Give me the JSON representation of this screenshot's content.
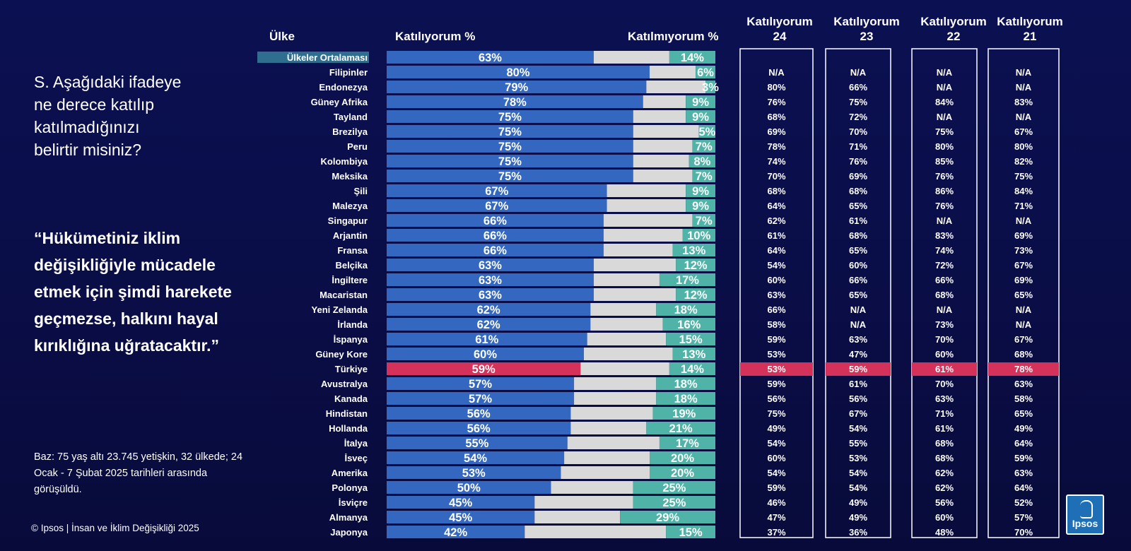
{
  "question": "S. Aşağıdaki ifadeye\nne derece katılıp\nkatılmadığınızı\nbelirtir misiniz?",
  "quote": "“Hükümetiniz iklim\ndeğişikliğiyle mücadele\netmek için şimdi harekete\ngeçmezse, halkını hayal\nkırıklığına uğratacaktır.”",
  "base_note": "Baz: 75 yaş altı 23.745 yetişkin, 32 ülkede; 24\nOcak - 7 Şubat 2025 tarihleri arasında\ngörüşüldü.",
  "copyright": "© Ipsos | İnsan ve İklim Değişikliği 2025",
  "logo_text": "Ipsos",
  "headers": {
    "country": "Ülke",
    "agree": "Katılıyorum %",
    "disagree": "Katılmıyorum %",
    "years": [
      "Katılıyorum\n24",
      "Katılıyorum\n23",
      "Katılıyorum\n22",
      "Katılıyorum\n21"
    ]
  },
  "colors": {
    "agree": "#3468c0",
    "neutral": "#d9d9d9",
    "disagree": "#4fb3a8",
    "highlight": "#d4325a",
    "average_label_bg": "#2f6e8f"
  },
  "chart_data": {
    "type": "bar",
    "stacked": true,
    "orientation": "horizontal",
    "xlim": [
      0,
      100
    ],
    "categories": [
      "Ülkeler Ortalaması",
      "Filipinler",
      "Endonezya",
      "Güney Afrika",
      "Tayland",
      "Brezilya",
      "Peru",
      "Kolombiya",
      "Meksika",
      "Şili",
      "Malezya",
      "Singapur",
      "Arjantin",
      "Fransa",
      "Belçika",
      "İngiltere",
      "Macaristan",
      "Yeni Zelanda",
      "İrlanda",
      "İspanya",
      "Güney Kore",
      "Türkiye",
      "Avustralya",
      "Kanada",
      "Hindistan",
      "Hollanda",
      "İtalya",
      "İsveç",
      "Amerika",
      "Polonya",
      "İsviçre",
      "Almanya",
      "Japonya"
    ],
    "highlight_category": "Türkiye",
    "average_category": "Ülkeler Ortalaması",
    "series": [
      {
        "name": "Katılıyorum %",
        "values": [
          63,
          80,
          79,
          78,
          75,
          75,
          75,
          75,
          75,
          67,
          67,
          66,
          66,
          66,
          63,
          63,
          63,
          62,
          62,
          61,
          60,
          59,
          57,
          57,
          56,
          56,
          55,
          54,
          53,
          50,
          45,
          45,
          42
        ]
      },
      {
        "name": "Katılmıyorum %",
        "values": [
          14,
          6,
          3,
          9,
          9,
          5,
          7,
          8,
          7,
          9,
          9,
          7,
          10,
          13,
          12,
          17,
          12,
          18,
          16,
          15,
          13,
          14,
          18,
          18,
          19,
          21,
          17,
          20,
          20,
          25,
          25,
          29,
          15
        ]
      }
    ],
    "neutral_values": [
      23,
      14,
      18,
      13,
      16,
      20,
      18,
      17,
      18,
      24,
      24,
      27,
      24,
      21,
      25,
      20,
      25,
      20,
      22,
      24,
      27,
      27,
      25,
      25,
      25,
      23,
      28,
      26,
      27,
      25,
      30,
      26,
      43
    ],
    "table": {
      "columns": [
        "Katılıyorum 24",
        "Katılıyorum 23",
        "Katılıyorum 22",
        "Katılıyorum 21"
      ],
      "rows": [
        [
          "",
          "",
          "",
          ""
        ],
        [
          "N/A",
          "N/A",
          "N/A",
          "N/A"
        ],
        [
          "80%",
          "66%",
          "N/A",
          "N/A"
        ],
        [
          "76%",
          "75%",
          "84%",
          "83%"
        ],
        [
          "68%",
          "72%",
          "N/A",
          "N/A"
        ],
        [
          "69%",
          "70%",
          "75%",
          "67%"
        ],
        [
          "78%",
          "71%",
          "80%",
          "80%"
        ],
        [
          "74%",
          "76%",
          "85%",
          "82%"
        ],
        [
          "70%",
          "69%",
          "76%",
          "75%"
        ],
        [
          "68%",
          "68%",
          "86%",
          "84%"
        ],
        [
          "64%",
          "65%",
          "76%",
          "71%"
        ],
        [
          "62%",
          "61%",
          "N/A",
          "N/A"
        ],
        [
          "61%",
          "68%",
          "83%",
          "69%"
        ],
        [
          "64%",
          "65%",
          "74%",
          "73%"
        ],
        [
          "54%",
          "60%",
          "72%",
          "67%"
        ],
        [
          "60%",
          "66%",
          "66%",
          "69%"
        ],
        [
          "63%",
          "65%",
          "68%",
          "65%"
        ],
        [
          "66%",
          "N/A",
          "N/A",
          "N/A"
        ],
        [
          "58%",
          "N/A",
          "73%",
          "N/A"
        ],
        [
          "59%",
          "63%",
          "70%",
          "67%"
        ],
        [
          "53%",
          "47%",
          "60%",
          "68%"
        ],
        [
          "53%",
          "59%",
          "61%",
          "78%"
        ],
        [
          "59%",
          "61%",
          "70%",
          "63%"
        ],
        [
          "56%",
          "56%",
          "63%",
          "58%"
        ],
        [
          "75%",
          "67%",
          "71%",
          "65%"
        ],
        [
          "49%",
          "54%",
          "61%",
          "49%"
        ],
        [
          "54%",
          "55%",
          "68%",
          "64%"
        ],
        [
          "60%",
          "53%",
          "68%",
          "59%"
        ],
        [
          "54%",
          "54%",
          "62%",
          "63%"
        ],
        [
          "59%",
          "54%",
          "62%",
          "64%"
        ],
        [
          "46%",
          "49%",
          "56%",
          "52%"
        ],
        [
          "47%",
          "49%",
          "60%",
          "57%"
        ],
        [
          "37%",
          "36%",
          "48%",
          "70%"
        ]
      ]
    }
  }
}
